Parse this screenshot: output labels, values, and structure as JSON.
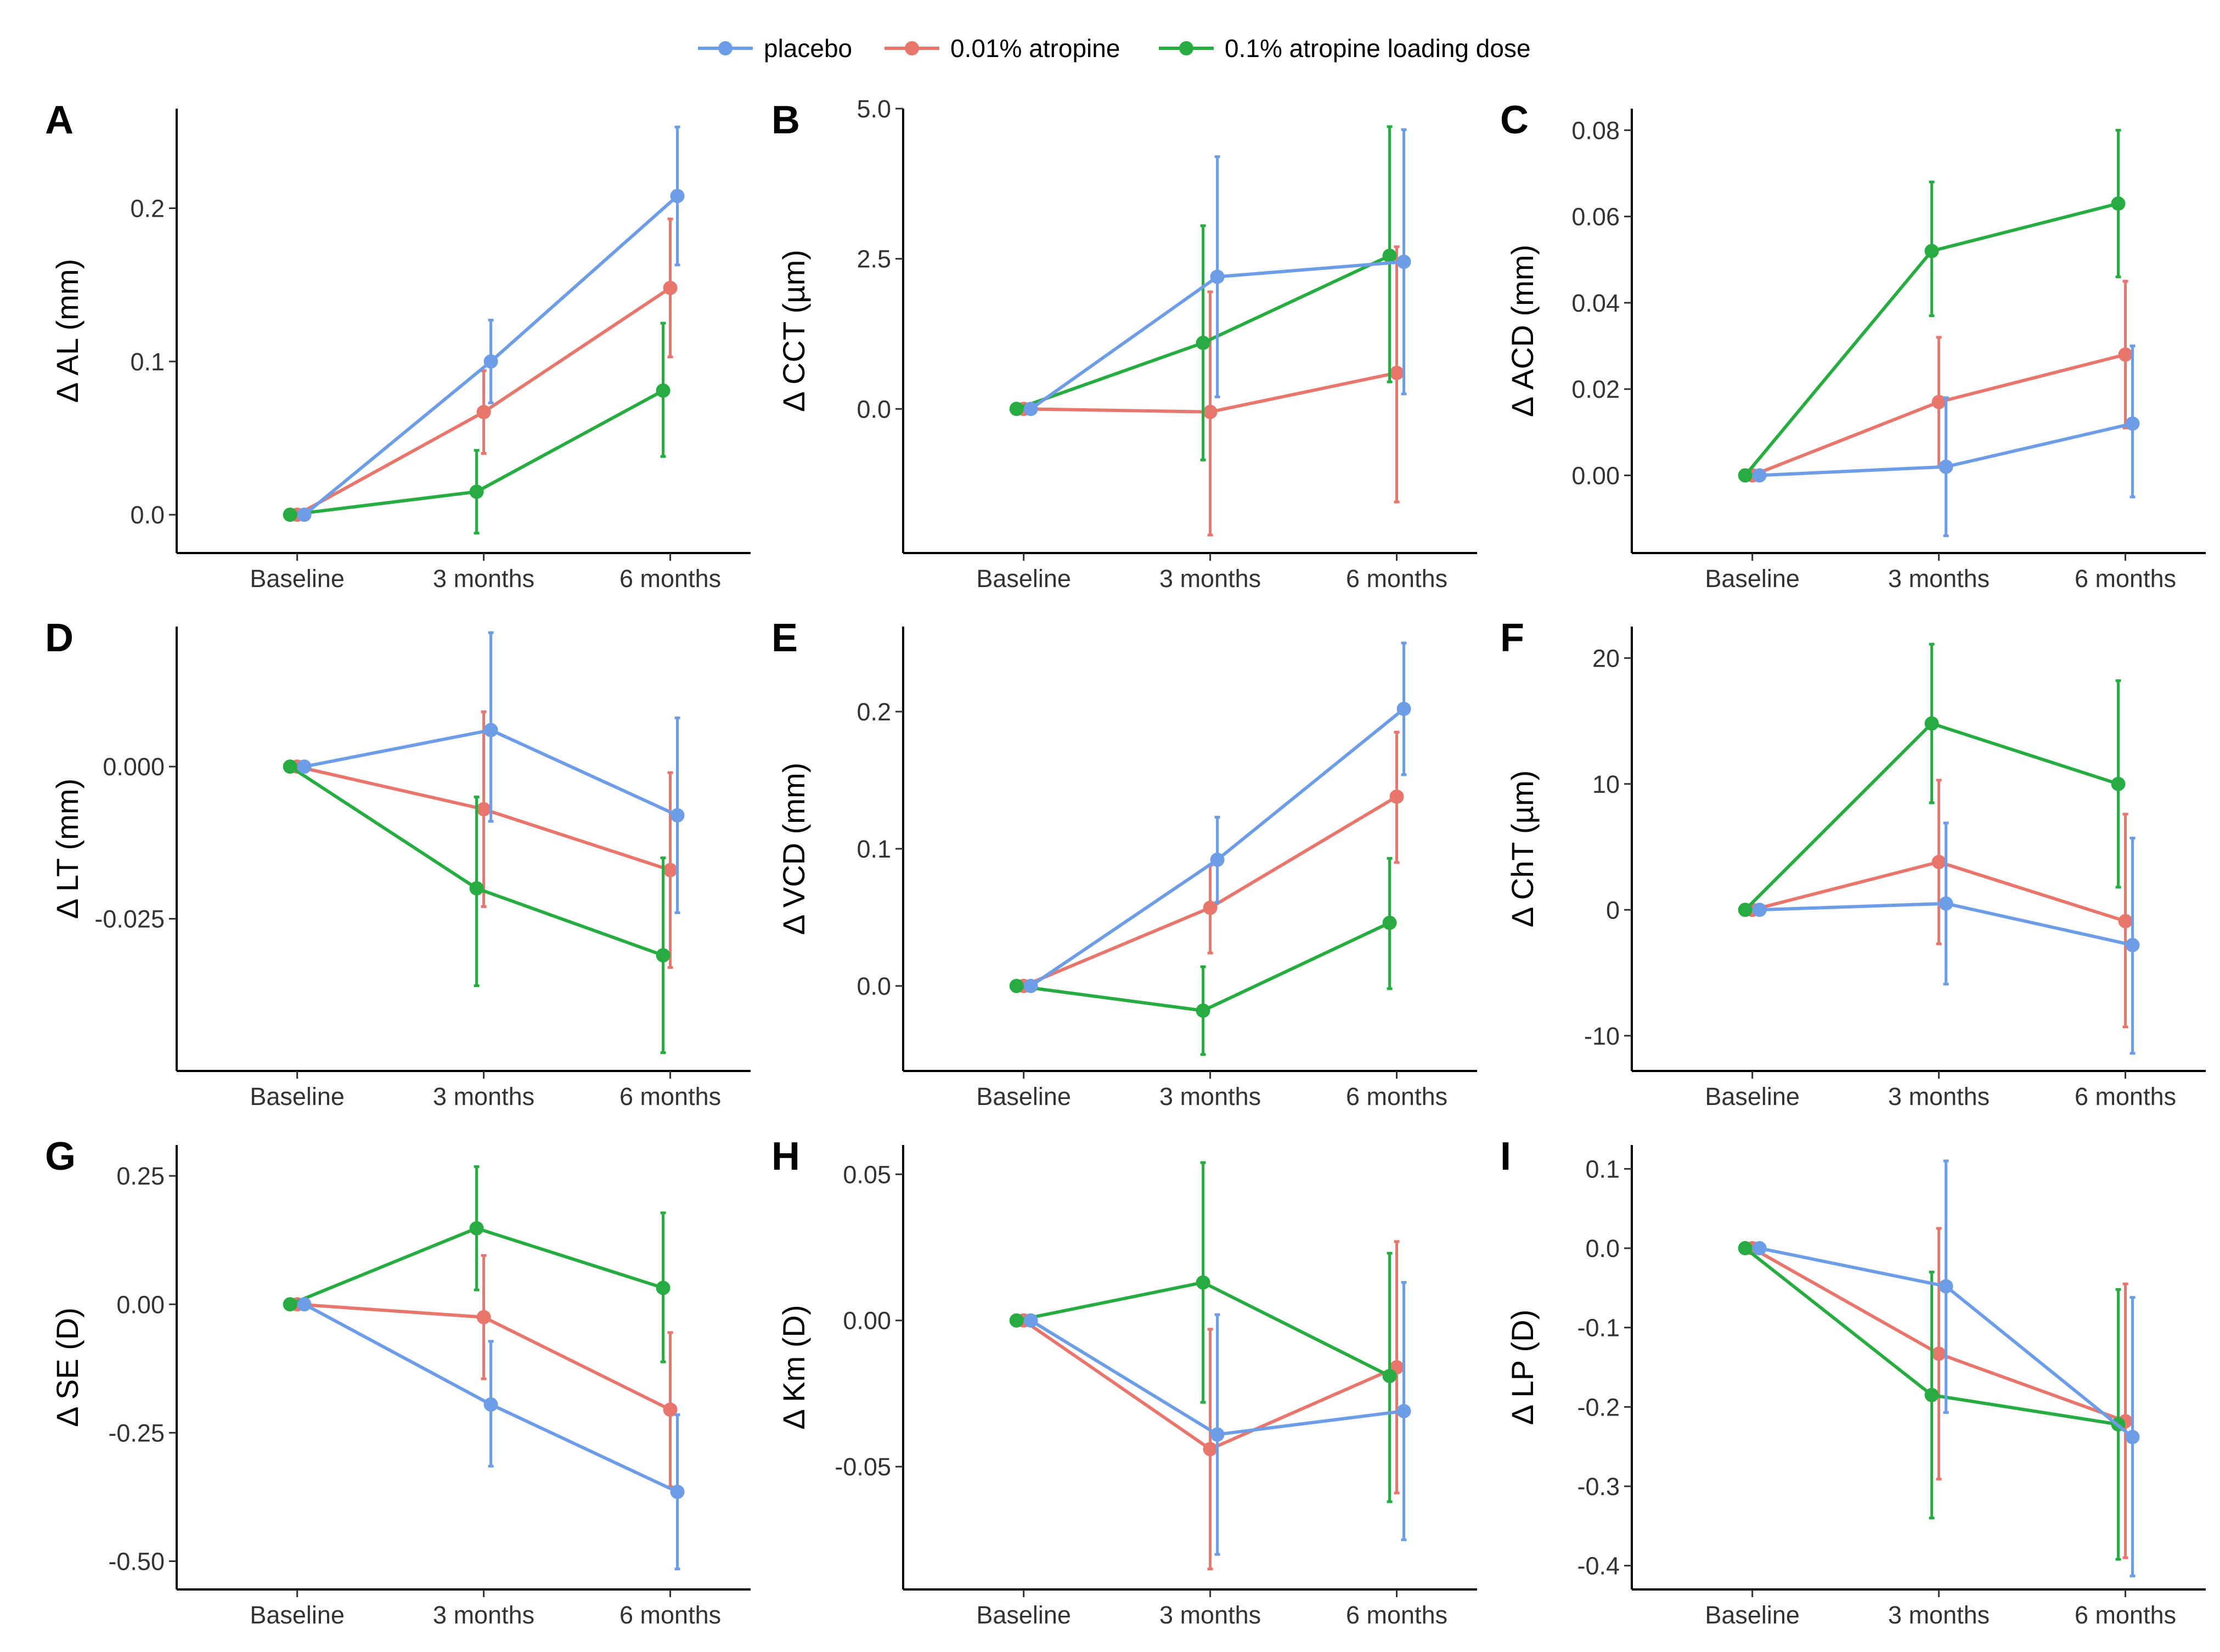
{
  "legend": [
    {
      "name": "placebo",
      "color": "#6c9de6"
    },
    {
      "name": "0.01% atropine",
      "color": "#e9766c"
    },
    {
      "name": "0.1% atropine loading dose",
      "color": "#27ac42"
    }
  ],
  "chart_data": [
    {
      "type": "line",
      "letter": "A",
      "ylabel": "Δ AL (mm)",
      "categories": [
        "Baseline",
        "3 months",
        "6 months"
      ],
      "ylim": [
        -0.025,
        0.265
      ],
      "yticks": [
        0.0,
        0.1,
        0.2
      ],
      "ytick_labels": [
        "0.0",
        "0.1",
        "0.2"
      ],
      "series": [
        {
          "name": "placebo",
          "values": [
            0,
            0.1,
            0.208
          ],
          "lower": [
            0,
            0.073,
            0.163
          ],
          "upper": [
            0,
            0.127,
            0.253
          ]
        },
        {
          "name": "0.01% atropine",
          "values": [
            0,
            0.067,
            0.148
          ],
          "lower": [
            0,
            0.04,
            0.103
          ],
          "upper": [
            0,
            0.094,
            0.193
          ]
        },
        {
          "name": "0.1% atropine loading dose",
          "values": [
            0,
            0.015,
            0.081
          ],
          "lower": [
            0,
            -0.012,
            0.038
          ],
          "upper": [
            0,
            0.042,
            0.125
          ]
        }
      ]
    },
    {
      "type": "line",
      "letter": "B",
      "ylabel": "Δ CCT (µm)",
      "categories": [
        "Baseline",
        "3 months",
        "6 months"
      ],
      "ylim": [
        -2.4,
        5.0
      ],
      "yticks": [
        0.0,
        2.5,
        5.0
      ],
      "ytick_labels": [
        "0.0",
        "2.5",
        "5.0"
      ],
      "series": [
        {
          "name": "placebo",
          "values": [
            0,
            2.2,
            2.45
          ],
          "lower": [
            0,
            0.2,
            0.25
          ],
          "upper": [
            0,
            4.2,
            4.65
          ]
        },
        {
          "name": "0.01% atropine",
          "values": [
            0,
            -0.05,
            0.6
          ],
          "lower": [
            0,
            -2.1,
            -1.55
          ],
          "upper": [
            0,
            1.95,
            2.7
          ]
        },
        {
          "name": "0.1% atropine loading dose",
          "values": [
            0,
            1.1,
            2.55
          ],
          "lower": [
            0,
            -0.85,
            0.45
          ],
          "upper": [
            0,
            3.05,
            4.7
          ]
        }
      ]
    },
    {
      "type": "line",
      "letter": "C",
      "ylabel": "Δ ACD (mm)",
      "categories": [
        "Baseline",
        "3 months",
        "6 months"
      ],
      "ylim": [
        -0.018,
        0.085
      ],
      "yticks": [
        0.0,
        0.02,
        0.04,
        0.06,
        0.08
      ],
      "ytick_labels": [
        "0.00",
        "0.02",
        "0.04",
        "0.06",
        "0.08"
      ],
      "series": [
        {
          "name": "placebo",
          "values": [
            0,
            0.002,
            0.012
          ],
          "lower": [
            0,
            -0.014,
            -0.005
          ],
          "upper": [
            0,
            0.018,
            0.03
          ]
        },
        {
          "name": "0.01% atropine",
          "values": [
            0,
            0.017,
            0.028
          ],
          "lower": [
            0,
            0.002,
            0.011
          ],
          "upper": [
            0,
            0.032,
            0.045
          ]
        },
        {
          "name": "0.1% atropine loading dose",
          "values": [
            0,
            0.052,
            0.063
          ],
          "lower": [
            0,
            0.037,
            0.046
          ],
          "upper": [
            0,
            0.068,
            0.08
          ]
        }
      ]
    },
    {
      "type": "line",
      "letter": "D",
      "ylabel": "Δ LT (mm)",
      "categories": [
        "Baseline",
        "3 months",
        "6 months"
      ],
      "ylim": [
        -0.05,
        0.023
      ],
      "yticks": [
        0.0,
        -0.025
      ],
      "ytick_labels": [
        "0.000",
        "-0.025"
      ],
      "series": [
        {
          "name": "placebo",
          "values": [
            0,
            0.006,
            -0.008
          ],
          "lower": [
            0,
            -0.009,
            -0.024
          ],
          "upper": [
            0,
            0.022,
            0.008
          ]
        },
        {
          "name": "0.01% atropine",
          "values": [
            0,
            -0.007,
            -0.017
          ],
          "lower": [
            0,
            -0.023,
            -0.033
          ],
          "upper": [
            0,
            0.009,
            -0.001
          ]
        },
        {
          "name": "0.1% atropine loading dose",
          "values": [
            0,
            -0.02,
            -0.031
          ],
          "lower": [
            0,
            -0.036,
            -0.047
          ],
          "upper": [
            0,
            -0.005,
            -0.015
          ]
        }
      ]
    },
    {
      "type": "line",
      "letter": "E",
      "ylabel": "Δ VCD (mm)",
      "categories": [
        "Baseline",
        "3 months",
        "6 months"
      ],
      "ylim": [
        -0.062,
        0.262
      ],
      "yticks": [
        0.0,
        0.1,
        0.2
      ],
      "ytick_labels": [
        "0.0",
        "0.1",
        "0.2"
      ],
      "series": [
        {
          "name": "placebo",
          "values": [
            0,
            0.092,
            0.202
          ],
          "lower": [
            0,
            0.061,
            0.154
          ],
          "upper": [
            0,
            0.123,
            0.25
          ]
        },
        {
          "name": "0.01% atropine",
          "values": [
            0,
            0.057,
            0.138
          ],
          "lower": [
            0,
            0.024,
            0.09
          ],
          "upper": [
            0,
            0.088,
            0.185
          ]
        },
        {
          "name": "0.1% atropine loading dose",
          "values": [
            0,
            -0.018,
            0.046
          ],
          "lower": [
            0,
            -0.05,
            -0.002
          ],
          "upper": [
            0,
            0.014,
            0.093
          ]
        }
      ]
    },
    {
      "type": "line",
      "letter": "F",
      "ylabel": "Δ ChT (µm)",
      "categories": [
        "Baseline",
        "3 months",
        "6 months"
      ],
      "ylim": [
        -12.8,
        22.5
      ],
      "yticks": [
        20,
        10,
        0,
        -10
      ],
      "ytick_labels": [
        "20",
        "10",
        "0",
        "-10"
      ],
      "series": [
        {
          "name": "placebo",
          "values": [
            0,
            0.5,
            -2.8
          ],
          "lower": [
            0,
            -5.9,
            -11.4
          ],
          "upper": [
            0,
            6.9,
            5.7
          ]
        },
        {
          "name": "0.01% atropine",
          "values": [
            0,
            3.8,
            -0.9
          ],
          "lower": [
            0,
            -2.7,
            -9.3
          ],
          "upper": [
            0,
            10.3,
            7.6
          ]
        },
        {
          "name": "0.1% atropine loading dose",
          "values": [
            0,
            14.8,
            10.0
          ],
          "lower": [
            0,
            8.5,
            1.8
          ],
          "upper": [
            0,
            21.1,
            18.2
          ]
        }
      ]
    },
    {
      "type": "line",
      "letter": "G",
      "ylabel": "Δ SE (D)",
      "categories": [
        "Baseline",
        "3 months",
        "6 months"
      ],
      "ylim": [
        -0.555,
        0.31
      ],
      "yticks": [
        0.25,
        0.0,
        -0.25,
        -0.5
      ],
      "ytick_labels": [
        "0.25",
        "0.00",
        "-0.25",
        "-0.50"
      ],
      "series": [
        {
          "name": "placebo",
          "values": [
            0,
            -0.195,
            -0.365
          ],
          "lower": [
            0,
            -0.315,
            -0.515
          ],
          "upper": [
            0,
            -0.072,
            -0.215
          ]
        },
        {
          "name": "0.01% atropine",
          "values": [
            0,
            -0.025,
            -0.205
          ],
          "lower": [
            0,
            -0.145,
            -0.355
          ],
          "upper": [
            0,
            0.095,
            -0.055
          ]
        },
        {
          "name": "0.1% atropine loading dose",
          "values": [
            0,
            0.148,
            0.032
          ],
          "lower": [
            0,
            0.028,
            -0.112
          ],
          "upper": [
            0,
            0.268,
            0.178
          ]
        }
      ]
    },
    {
      "type": "line",
      "letter": "H",
      "ylabel": "Δ Km (D)",
      "categories": [
        "Baseline",
        "3 months",
        "6 months"
      ],
      "ylim": [
        -0.092,
        0.06
      ],
      "yticks": [
        0.05,
        0.0,
        -0.05
      ],
      "ytick_labels": [
        "0.05",
        "0.00",
        "-0.05"
      ],
      "series": [
        {
          "name": "placebo",
          "values": [
            0,
            -0.039,
            -0.031
          ],
          "lower": [
            0,
            -0.08,
            -0.075
          ],
          "upper": [
            0,
            0.002,
            0.013
          ]
        },
        {
          "name": "0.01% atropine",
          "values": [
            0,
            -0.044,
            -0.016
          ],
          "lower": [
            0,
            -0.085,
            -0.059
          ],
          "upper": [
            0,
            -0.003,
            0.027
          ]
        },
        {
          "name": "0.1% atropine loading dose",
          "values": [
            0,
            0.013,
            -0.019
          ],
          "lower": [
            0,
            -0.028,
            -0.062
          ],
          "upper": [
            0,
            0.054,
            0.023
          ]
        }
      ]
    },
    {
      "type": "line",
      "letter": "I",
      "ylabel": "Δ LP (D)",
      "categories": [
        "Baseline",
        "3 months",
        "6 months"
      ],
      "ylim": [
        -0.43,
        0.13
      ],
      "yticks": [
        0.1,
        0.0,
        -0.1,
        -0.2,
        -0.3,
        -0.4
      ],
      "ytick_labels": [
        "0.1",
        "0.0",
        "-0.1",
        "-0.2",
        "-0.3",
        "-0.4"
      ],
      "series": [
        {
          "name": "placebo",
          "values": [
            0,
            -0.048,
            -0.238
          ],
          "lower": [
            0,
            -0.207,
            -0.413
          ],
          "upper": [
            0,
            0.11,
            -0.062
          ]
        },
        {
          "name": "0.01% atropine",
          "values": [
            0,
            -0.133,
            -0.218
          ],
          "lower": [
            0,
            -0.291,
            -0.39
          ],
          "upper": [
            0,
            0.025,
            -0.045
          ]
        },
        {
          "name": "0.1% atropine loading dose",
          "values": [
            0,
            -0.185,
            -0.222
          ],
          "lower": [
            0,
            -0.34,
            -0.392
          ],
          "upper": [
            0,
            -0.03,
            -0.052
          ]
        }
      ]
    }
  ]
}
